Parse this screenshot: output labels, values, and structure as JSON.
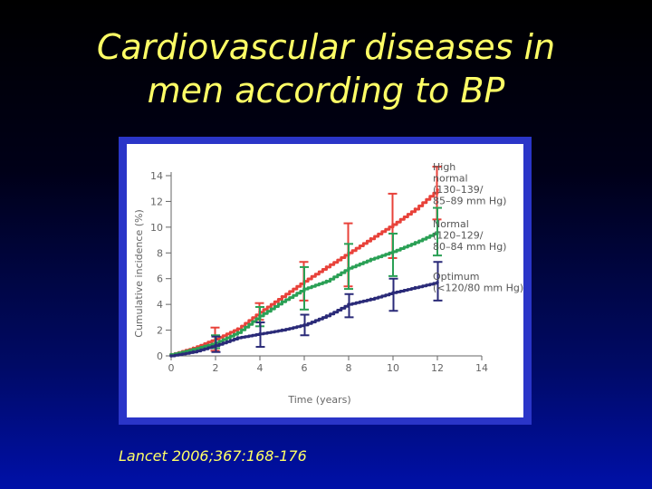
{
  "slide": {
    "title_line1": "Cardiovascular diseases in",
    "title_line2": "men according to BP",
    "citation": "Lancet  2006;367:168-176"
  },
  "chart_data": {
    "type": "line",
    "title": "",
    "xlabel": "Time (years)",
    "ylabel": "Cumulative incidence (%)",
    "xlim": [
      0,
      14
    ],
    "ylim": [
      0,
      14
    ],
    "xticks": [
      0,
      2,
      4,
      6,
      8,
      10,
      12,
      14
    ],
    "yticks": [
      0,
      2,
      4,
      6,
      8,
      10,
      12,
      14
    ],
    "grid": false,
    "legend_position": "right",
    "series": [
      {
        "name": "High normal",
        "legend_lines": [
          "High",
          "normal",
          "(130–139/",
          "85–89 mm Hg)"
        ],
        "color": "#e8423a",
        "x": [
          0,
          1,
          2,
          3,
          4,
          5,
          6,
          7,
          8,
          9,
          10,
          11,
          12
        ],
        "y": [
          0.1,
          0.6,
          1.3,
          2.1,
          3.4,
          4.6,
          5.8,
          6.9,
          8.0,
          9.1,
          10.2,
          11.4,
          12.9
        ],
        "error_x": [
          2,
          4,
          6,
          8,
          10,
          12
        ],
        "error_lo": [
          0.4,
          2.8,
          4.3,
          5.4,
          7.6,
          10.6
        ],
        "error_hi": [
          2.2,
          4.1,
          7.3,
          10.3,
          12.6,
          14.7
        ]
      },
      {
        "name": "Normal",
        "legend_lines": [
          "Normal",
          "(120–129/",
          "80–84 mm Hg)"
        ],
        "color": "#2aa055",
        "x": [
          0,
          1,
          2,
          3,
          4,
          5,
          6,
          7,
          8,
          9,
          10,
          11,
          12
        ],
        "y": [
          0.1,
          0.5,
          1.0,
          1.8,
          3.1,
          4.2,
          5.2,
          5.8,
          6.8,
          7.5,
          8.1,
          8.8,
          9.6
        ],
        "error_x": [
          2,
          4,
          6,
          8,
          10,
          12
        ],
        "error_lo": [
          0.6,
          2.3,
          3.6,
          5.2,
          6.2,
          7.8
        ],
        "error_hi": [
          1.6,
          3.8,
          6.9,
          8.7,
          9.5,
          11.5
        ]
      },
      {
        "name": "Optimum",
        "legend_lines": [
          "Optimum",
          "(<120/80 mm Hg)"
        ],
        "color": "#2a2a78",
        "x": [
          0,
          1,
          2,
          3,
          4,
          5,
          6,
          7,
          8,
          9,
          10,
          11,
          12
        ],
        "y": [
          0.0,
          0.3,
          0.8,
          1.4,
          1.7,
          2.0,
          2.4,
          3.1,
          4.0,
          4.4,
          4.9,
          5.3,
          5.7
        ],
        "error_x": [
          2,
          4,
          6,
          8,
          10,
          12
        ],
        "error_lo": [
          0.3,
          0.7,
          1.6,
          3.0,
          3.5,
          4.3
        ],
        "error_hi": [
          1.5,
          2.6,
          3.2,
          4.8,
          6.0,
          7.3
        ]
      }
    ]
  }
}
